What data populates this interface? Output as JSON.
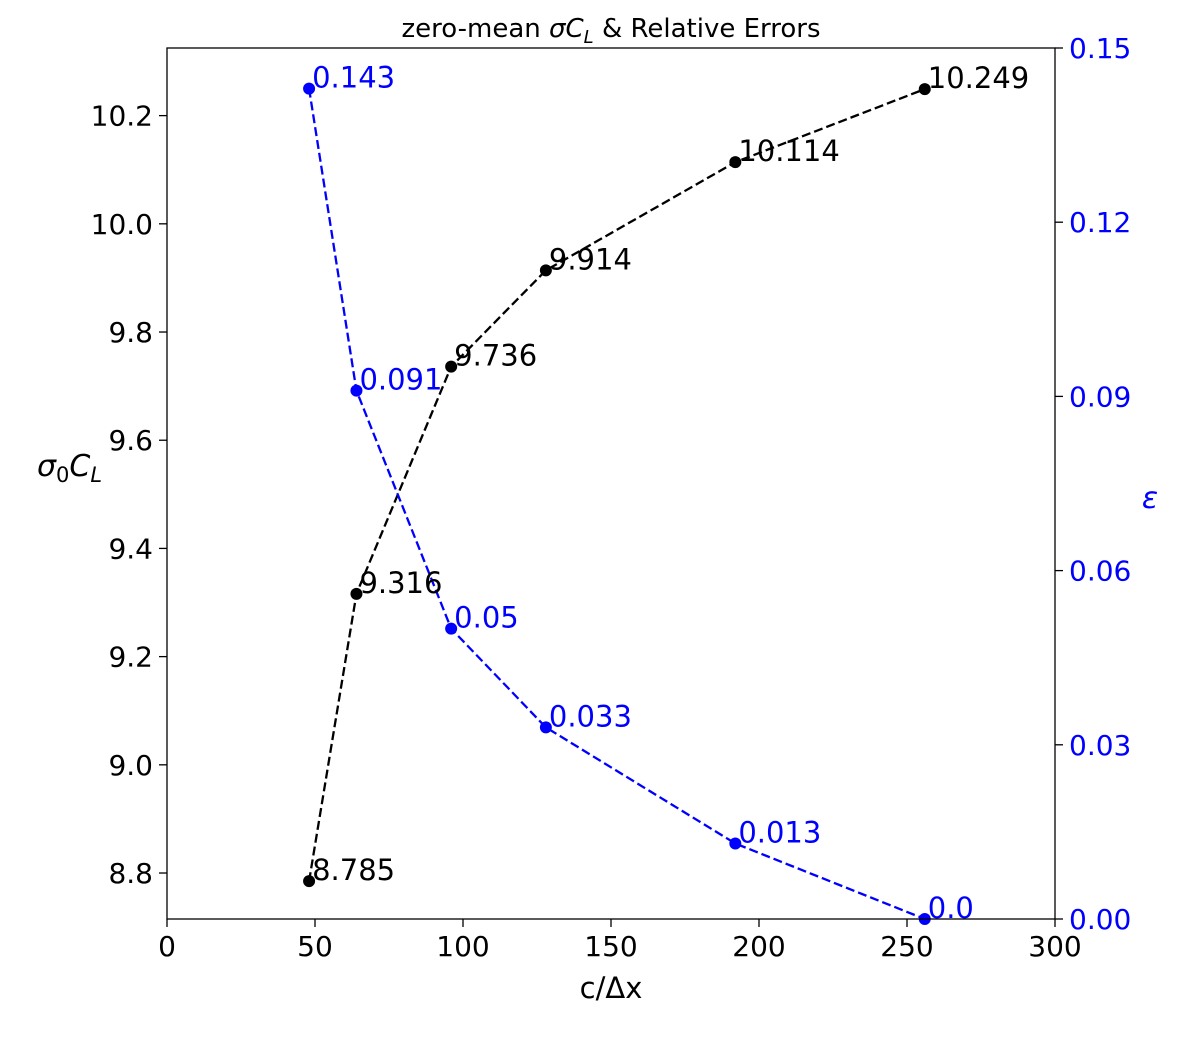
{
  "chart_data": {
    "type": "line",
    "title_prefix": "zero-mean ",
    "title_math": "σC",
    "title_math_sub": "L",
    "title_suffix": " & Relative Errors",
    "xlabel": "c/Δx",
    "ylabel_left": {
      "base": "σ",
      "sub1": "0",
      "mid": "C",
      "sub2": "L"
    },
    "ylabel_right": "ε",
    "xlim": [
      0,
      300
    ],
    "ylim_left": [
      8.715,
      10.325
    ],
    "ylim_right": [
      0.0,
      0.15
    ],
    "x_ticks": [
      0,
      50,
      100,
      150,
      200,
      250,
      300
    ],
    "x_tick_labels": [
      "0",
      "50",
      "100",
      "150",
      "200",
      "250",
      "300"
    ],
    "left_ticks": [
      8.8,
      9.0,
      9.2,
      9.4,
      9.6,
      9.8,
      10.0,
      10.2
    ],
    "left_tick_labels": [
      "8.8",
      "9.0",
      "9.2",
      "9.4",
      "9.6",
      "9.8",
      "10.0",
      "10.2"
    ],
    "right_ticks": [
      0.0,
      0.03,
      0.06,
      0.09,
      0.12,
      0.15
    ],
    "right_tick_labels": [
      "0.00",
      "0.03",
      "0.06",
      "0.09",
      "0.12",
      "0.15"
    ],
    "grid": false,
    "series": [
      {
        "axis": "left",
        "color": "#000000",
        "line_style": "dashed",
        "marker": "circle",
        "x": [
          48,
          64,
          96,
          128,
          192,
          256
        ],
        "y": [
          8.785,
          9.316,
          9.736,
          9.914,
          10.114,
          10.249
        ],
        "labels": [
          "8.785",
          "9.316",
          "9.736",
          "9.914",
          "10.114",
          "10.249"
        ]
      },
      {
        "axis": "right",
        "color": "#0000ff",
        "line_style": "dashed",
        "marker": "circle",
        "x": [
          48,
          64,
          96,
          128,
          192,
          256
        ],
        "y": [
          0.143,
          0.091,
          0.05,
          0.033,
          0.013,
          0.0
        ],
        "labels": [
          "0.143",
          "0.091",
          "0.05",
          "0.033",
          "0.013",
          "0.0"
        ]
      }
    ]
  }
}
